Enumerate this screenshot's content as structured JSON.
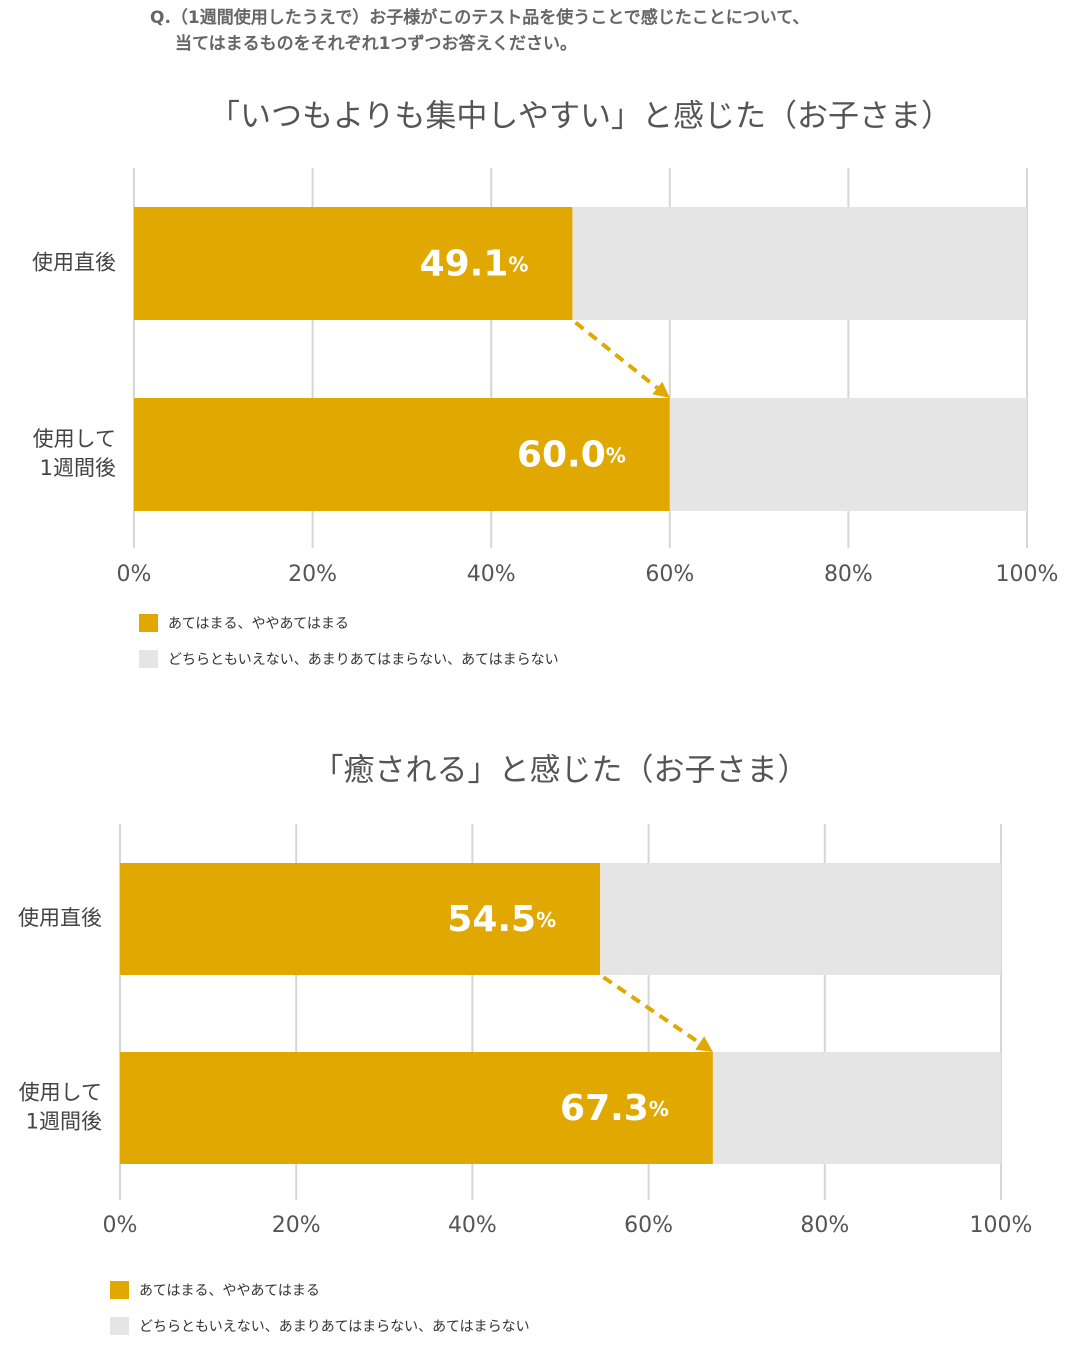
{
  "question": [
    "Q.（1週間使用したうえで）お子様がこのテスト品を使うことで感じたことについて、",
    "当てはまるものをそれぞれ1つずつお答えください。"
  ],
  "chart_data": [
    {
      "type": "bar",
      "stacked": true,
      "orientation": "horizontal",
      "title": "「いつもよりも集中しやすい」と感じた（お子さま）",
      "categories": [
        "使用直後",
        "使用して\n1週間後"
      ],
      "series": [
        {
          "name": "あてはまる、ややあてはまる",
          "color": "#e0a800",
          "values": [
            49.1,
            60.0
          ],
          "value_labels": [
            "49.1%",
            "60.0%"
          ]
        },
        {
          "name": "どちらともいえない、あまりあてはまらない、あてはまらない",
          "color": "#e6e5e5",
          "values": [
            50.9,
            40.0
          ]
        }
      ],
      "xlim": [
        0,
        100
      ],
      "xticks": [
        {
          "value": 0,
          "label": "0%"
        },
        {
          "value": 20,
          "label": "20%"
        },
        {
          "value": 40,
          "label": "40%"
        },
        {
          "value": 60,
          "label": "60%"
        },
        {
          "value": 80,
          "label": "80%"
        },
        {
          "value": 100,
          "label": "100%"
        }
      ],
      "grid": true,
      "arrow_color": "#e0a800"
    },
    {
      "type": "bar",
      "stacked": true,
      "orientation": "horizontal",
      "title": "「癒される」と感じた（お子さま）",
      "categories": [
        "使用直後",
        "使用して\n1週間後"
      ],
      "series": [
        {
          "name": "あてはまる、ややあてはまる",
          "color": "#e0a800",
          "values": [
            54.5,
            67.3
          ],
          "value_labels": [
            "54.5%",
            "67.3%"
          ]
        },
        {
          "name": "どちらともいえない、あまりあてはまらない、あてはまらない",
          "color": "#e6e5e5",
          "values": [
            45.5,
            32.7
          ]
        }
      ],
      "xlim": [
        0,
        100
      ],
      "xticks": [
        {
          "value": 0,
          "label": "0%"
        },
        {
          "value": 20,
          "label": "20%"
        },
        {
          "value": 40,
          "label": "40%"
        },
        {
          "value": 60,
          "label": "60%"
        },
        {
          "value": 80,
          "label": "80%"
        },
        {
          "value": 100,
          "label": "100%"
        }
      ],
      "grid": true,
      "arrow_color": "#e0a800"
    }
  ]
}
